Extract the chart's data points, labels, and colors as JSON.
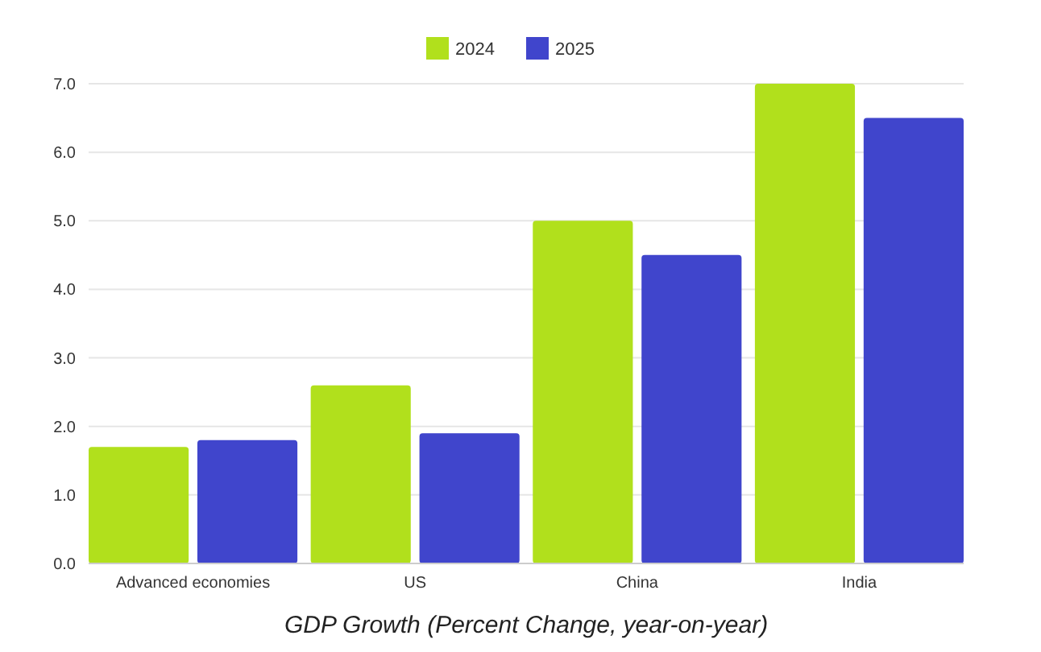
{
  "chart_data": {
    "type": "bar",
    "title": "GDP Growth (Percent Change, year-on-year)",
    "categories": [
      "Advanced economies",
      "US",
      "China",
      "India"
    ],
    "series": [
      {
        "name": "2024",
        "color": "#b1e01c",
        "values": [
          1.7,
          2.6,
          5.0,
          7.0
        ]
      },
      {
        "name": "2025",
        "color": "#4045cc",
        "values": [
          1.8,
          1.9,
          4.5,
          6.5
        ]
      }
    ],
    "ylim": [
      0,
      7
    ],
    "yticks": [
      {
        "value": 0,
        "label": "0.0"
      },
      {
        "value": 1,
        "label": "1.0"
      },
      {
        "value": 2,
        "label": "2.0"
      },
      {
        "value": 3,
        "label": "3.0"
      },
      {
        "value": 4,
        "label": "4.0"
      },
      {
        "value": 5,
        "label": "5.0"
      },
      {
        "value": 6,
        "label": "6.0"
      },
      {
        "value": 7,
        "label": "7.0"
      }
    ],
    "grid": "y",
    "legend": "top"
  }
}
